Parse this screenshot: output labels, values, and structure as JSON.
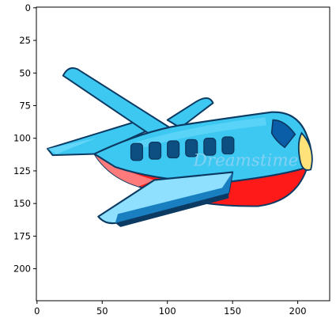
{
  "figure": {
    "image_size": [
      225,
      225
    ],
    "xlim": [
      -0.5,
      224.5
    ],
    "ylim": [
      224.5,
      -0.5
    ],
    "x_ticks": [
      0,
      50,
      100,
      150,
      200
    ],
    "y_ticks": [
      0,
      25,
      50,
      75,
      100,
      125,
      150,
      175,
      200
    ],
    "axes_frame": true
  },
  "image": {
    "subject": "cartoon airplane",
    "watermark_text": "Dreamstime",
    "colors": {
      "fuselage": "#3dc8f2",
      "fuselage_highlight": "#7fe0ff",
      "belly": "#ff1a1a",
      "belly_shade": "#ff7a7a",
      "outline": "#0b3a63",
      "window": "#0e4f82",
      "cockpit": "#0a5ea8",
      "nose": "#ffe27a",
      "wing_top": "#8fe0ff",
      "wing_edge": "#1a7fc0",
      "background": "#ffffff"
    }
  }
}
